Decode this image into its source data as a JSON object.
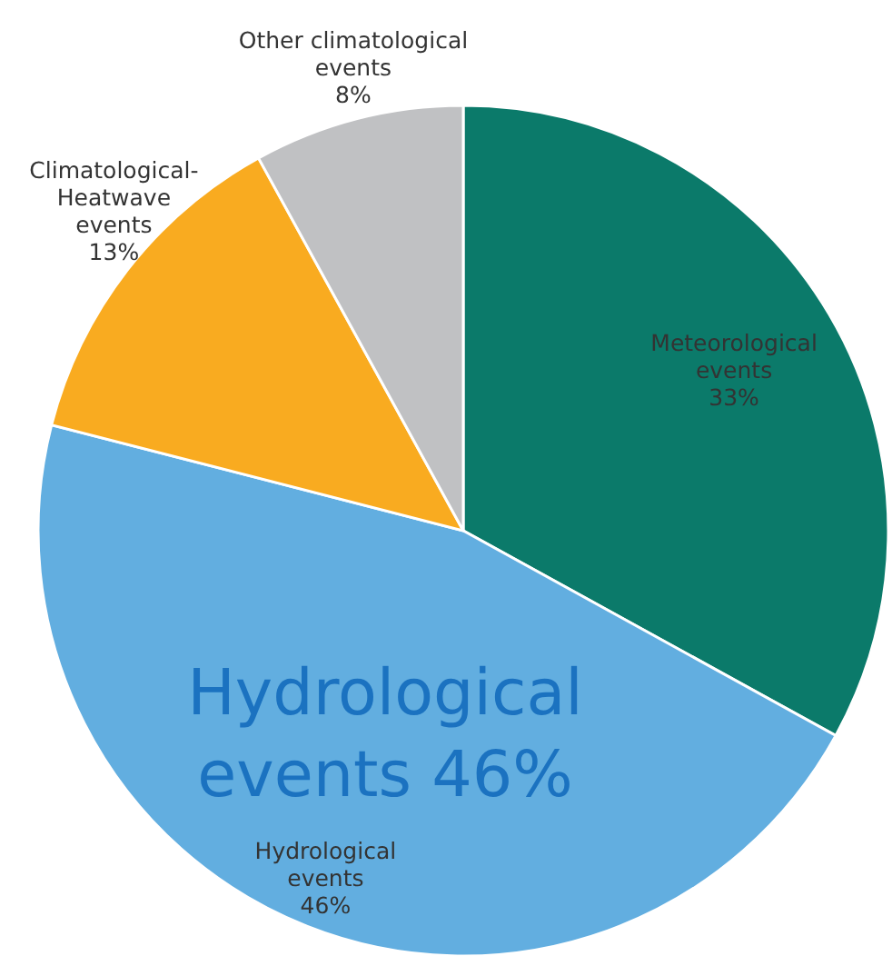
{
  "chart_data": {
    "type": "pie",
    "categories": [
      "Meteorological\nevents",
      "Hydrological\nevents",
      "Climatological-\nHeatwave\nevents",
      "Other climatological\nevents"
    ],
    "values": [
      33,
      46,
      13,
      8
    ],
    "colors": [
      "#0b7a6a",
      "#62aee0",
      "#f9ab20",
      "#c0c1c3"
    ],
    "value_labels": [
      "33%",
      "46%",
      "13%",
      "8%"
    ],
    "annotations": [
      "Hydrological events 46%"
    ]
  }
}
